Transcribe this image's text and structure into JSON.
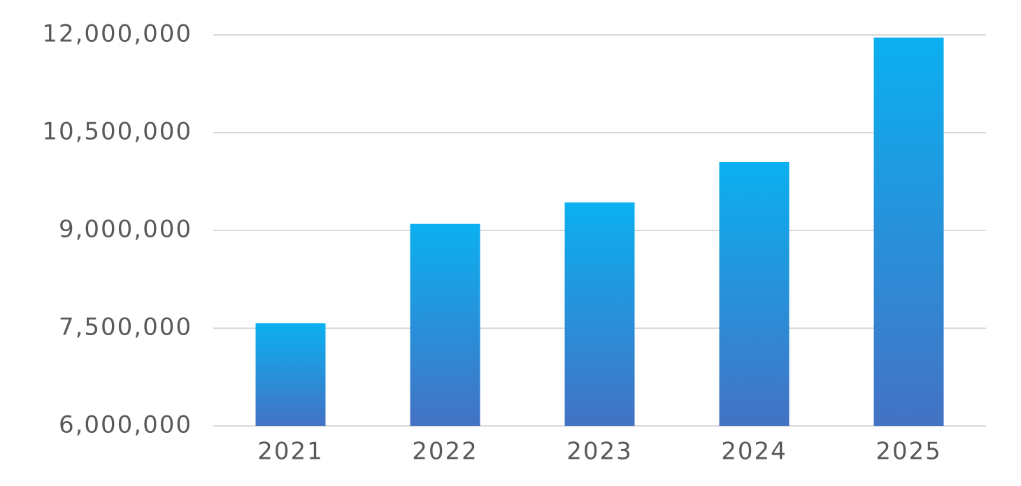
{
  "chart_data": {
    "type": "bar",
    "categories": [
      "2021",
      "2022",
      "2023",
      "2024",
      "2025"
    ],
    "values": [
      7575000,
      9100000,
      9430000,
      10050000,
      11960000
    ],
    "gradient": [
      "#0bb0f0",
      "#4472c4"
    ],
    "ylim": [
      6000000,
      12000000
    ],
    "yticks": [
      {
        "value": 6000000,
        "label": "6,000,000"
      },
      {
        "value": 7500000,
        "label": "7,500,000"
      },
      {
        "value": 9000000,
        "label": "9,000,000"
      },
      {
        "value": 10500000,
        "label": "10,500,000"
      },
      {
        "value": 12000000,
        "label": "12,000,000"
      }
    ],
    "grid": true
  }
}
